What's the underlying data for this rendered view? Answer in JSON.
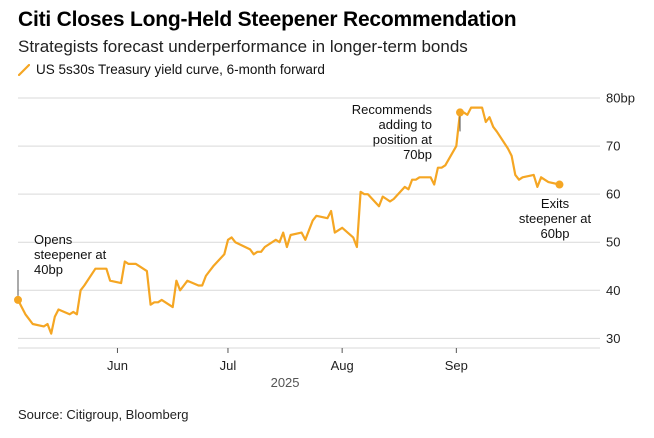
{
  "title": "Citi Closes Long-Held Steepener Recommendation",
  "subtitle": "Strategists forecast underperformance in longer-term bonds",
  "source": "Source: Citigroup, Bloomberg",
  "chart_data": {
    "type": "line",
    "legend_position": "top-left",
    "grid": true,
    "series": [
      {
        "name": "US 5s30s Treasury yield curve, 6-month forward",
        "color": "#f5a623",
        "points": [
          [
            "2025-05-05",
            38
          ],
          [
            "2025-05-06",
            36.5
          ],
          [
            "2025-05-07",
            35
          ],
          [
            "2025-05-08",
            34
          ],
          [
            "2025-05-09",
            33
          ],
          [
            "2025-05-12",
            32.5
          ],
          [
            "2025-05-13",
            33
          ],
          [
            "2025-05-14",
            31
          ],
          [
            "2025-05-15",
            34.5
          ],
          [
            "2025-05-16",
            36
          ],
          [
            "2025-05-19",
            35
          ],
          [
            "2025-05-20",
            35.5
          ],
          [
            "2025-05-21",
            35
          ],
          [
            "2025-05-22",
            40
          ],
          [
            "2025-05-23",
            41
          ],
          [
            "2025-05-26",
            44.5
          ],
          [
            "2025-05-27",
            44.5
          ],
          [
            "2025-05-28",
            44.5
          ],
          [
            "2025-05-29",
            44.5
          ],
          [
            "2025-05-30",
            42
          ],
          [
            "2025-06-02",
            41.5
          ],
          [
            "2025-06-03",
            46
          ],
          [
            "2025-06-04",
            45.5
          ],
          [
            "2025-06-05",
            45.5
          ],
          [
            "2025-06-06",
            45.5
          ],
          [
            "2025-06-09",
            44
          ],
          [
            "2025-06-10",
            37
          ],
          [
            "2025-06-11",
            37.5
          ],
          [
            "2025-06-12",
            37.5
          ],
          [
            "2025-06-13",
            38
          ],
          [
            "2025-06-16",
            36.5
          ],
          [
            "2025-06-17",
            42
          ],
          [
            "2025-06-18",
            40
          ],
          [
            "2025-06-19",
            41
          ],
          [
            "2025-06-20",
            42
          ],
          [
            "2025-06-23",
            41
          ],
          [
            "2025-06-24",
            41
          ],
          [
            "2025-06-25",
            43
          ],
          [
            "2025-06-26",
            44
          ],
          [
            "2025-06-27",
            45
          ],
          [
            "2025-06-30",
            47.5
          ],
          [
            "2025-07-01",
            50.5
          ],
          [
            "2025-07-02",
            51
          ],
          [
            "2025-07-03",
            50
          ],
          [
            "2025-07-07",
            48.5
          ],
          [
            "2025-07-08",
            47.5
          ],
          [
            "2025-07-09",
            48
          ],
          [
            "2025-07-10",
            48
          ],
          [
            "2025-07-11",
            49
          ],
          [
            "2025-07-14",
            50.5
          ],
          [
            "2025-07-15",
            50
          ],
          [
            "2025-07-16",
            52
          ],
          [
            "2025-07-17",
            49
          ],
          [
            "2025-07-18",
            51.5
          ],
          [
            "2025-07-21",
            52
          ],
          [
            "2025-07-22",
            50.5
          ],
          [
            "2025-07-23",
            52.5
          ],
          [
            "2025-07-24",
            54.5
          ],
          [
            "2025-07-25",
            55.5
          ],
          [
            "2025-07-28",
            55
          ],
          [
            "2025-07-29",
            56.5
          ],
          [
            "2025-07-30",
            52
          ],
          [
            "2025-07-31",
            52.5
          ],
          [
            "2025-08-01",
            53
          ],
          [
            "2025-08-04",
            51
          ],
          [
            "2025-08-05",
            49
          ],
          [
            "2025-08-06",
            60.5
          ],
          [
            "2025-08-07",
            60
          ],
          [
            "2025-08-08",
            60
          ],
          [
            "2025-08-11",
            57.5
          ],
          [
            "2025-08-12",
            59.5
          ],
          [
            "2025-08-13",
            59
          ],
          [
            "2025-08-14",
            58.5
          ],
          [
            "2025-08-15",
            59
          ],
          [
            "2025-08-18",
            61.5
          ],
          [
            "2025-08-19",
            61
          ],
          [
            "2025-08-20",
            63
          ],
          [
            "2025-08-21",
            63
          ],
          [
            "2025-08-22",
            63.5
          ],
          [
            "2025-08-25",
            63.5
          ],
          [
            "2025-08-26",
            62
          ],
          [
            "2025-08-27",
            65.5
          ],
          [
            "2025-08-28",
            65.5
          ],
          [
            "2025-08-29",
            66
          ],
          [
            "2025-09-01",
            70
          ],
          [
            "2025-09-02",
            77
          ],
          [
            "2025-09-03",
            77
          ],
          [
            "2025-09-04",
            76.5
          ],
          [
            "2025-09-05",
            78
          ],
          [
            "2025-09-08",
            78
          ],
          [
            "2025-09-09",
            75
          ],
          [
            "2025-09-10",
            76
          ],
          [
            "2025-09-11",
            74
          ],
          [
            "2025-09-12",
            73
          ],
          [
            "2025-09-15",
            69.5
          ],
          [
            "2025-09-16",
            68
          ],
          [
            "2025-09-17",
            64
          ],
          [
            "2025-09-18",
            63
          ],
          [
            "2025-09-19",
            63.5
          ],
          [
            "2025-09-22",
            64
          ],
          [
            "2025-09-23",
            61.5
          ],
          [
            "2025-09-24",
            63.5
          ],
          [
            "2025-09-25",
            63
          ],
          [
            "2025-09-26",
            62.5
          ],
          [
            "2025-09-29",
            62
          ]
        ]
      }
    ],
    "x_ticks": [
      {
        "date": "2025-06-01",
        "label": "Jun"
      },
      {
        "date": "2025-07-01",
        "label": "Jul"
      },
      {
        "date": "2025-08-01",
        "label": "Aug"
      },
      {
        "date": "2025-09-01",
        "label": "Sep"
      }
    ],
    "x_year_label": "2025",
    "xlim": [
      "2025-05-05",
      "2025-10-10"
    ],
    "y_ticks": [
      {
        "value": 30,
        "label": "30"
      },
      {
        "value": 40,
        "label": "40"
      },
      {
        "value": 50,
        "label": "50"
      },
      {
        "value": 60,
        "label": "60"
      },
      {
        "value": 70,
        "label": "70"
      },
      {
        "value": 80,
        "label": "80bp"
      }
    ],
    "ylim": [
      28,
      80
    ],
    "annotations": [
      {
        "date": "2025-05-05",
        "value": 38,
        "lines": [
          "Opens",
          "steepener at",
          "40bp"
        ]
      },
      {
        "date": "2025-09-02",
        "value": 77,
        "lines": [
          "Recommends",
          "adding to",
          "position at",
          "70bp"
        ]
      },
      {
        "date": "2025-09-29",
        "value": 62,
        "lines": [
          "Exits",
          "steepener at",
          "60bp"
        ]
      }
    ]
  }
}
